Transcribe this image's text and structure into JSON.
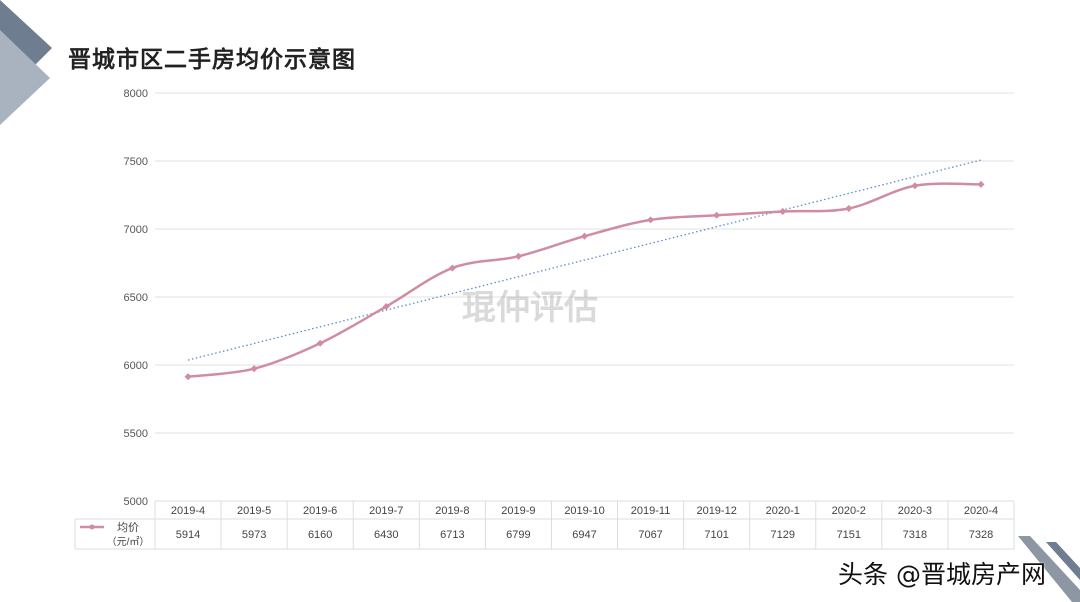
{
  "chart_data": {
    "type": "line",
    "title": "晋城市区二手房均价示意图",
    "categories": [
      "2019-4",
      "2019-5",
      "2019-6",
      "2019-7",
      "2019-8",
      "2019-9",
      "2019-10",
      "2019-11",
      "2019-12",
      "2020-1",
      "2020-2",
      "2020-3",
      "2020-4"
    ],
    "series": [
      {
        "name": "均价",
        "unit": "（元/㎡）",
        "values": [
          5914,
          5973,
          6160,
          6430,
          6713,
          6799,
          6947,
          7067,
          7101,
          7129,
          7151,
          7318,
          7328
        ],
        "color": "#d08ca2"
      }
    ],
    "trendline": {
      "type": "linear",
      "style": "dotted",
      "color": "#5b8fc7"
    },
    "ylim": [
      5000,
      8000
    ],
    "yticks": [
      5000,
      5500,
      6000,
      6500,
      7000,
      7500,
      8000
    ],
    "grid": true,
    "legend": "data-table"
  },
  "watermark": "琨仲评估",
  "credit": "头条 @晋城房产网"
}
